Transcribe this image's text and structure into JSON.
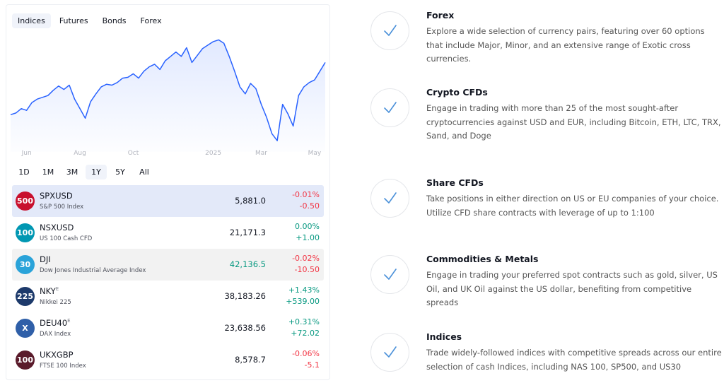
{
  "tabs": [
    "Indices",
    "Futures",
    "Bonds",
    "Forex"
  ],
  "chart_data": {
    "type": "line",
    "color": "#2962ff",
    "values": [
      5280,
      5300,
      5350,
      5330,
      5420,
      5460,
      5480,
      5500,
      5560,
      5610,
      5570,
      5620,
      5460,
      5350,
      5240,
      5430,
      5520,
      5600,
      5630,
      5620,
      5650,
      5700,
      5710,
      5750,
      5700,
      5780,
      5830,
      5860,
      5800,
      5900,
      5950,
      6000,
      5950,
      6050,
      5880,
      5960,
      6040,
      6080,
      6120,
      6140,
      6100,
      5950,
      5780,
      5600,
      5520,
      5640,
      5580,
      5400,
      5250,
      5062,
      4982,
      5400,
      5290,
      5150,
      5500,
      5600,
      5650,
      5680,
      5780,
      5880
    ],
    "xlim": [
      0,
      59
    ],
    "ylim": [
      4950,
      6200
    ],
    "xticks": [
      {
        "value": 3,
        "label": "Jun"
      },
      {
        "value": 13,
        "label": "Aug"
      },
      {
        "value": 23,
        "label": "Oct"
      },
      {
        "value": 38,
        "label": "2025"
      },
      {
        "value": 47,
        "label": "Mar"
      },
      {
        "value": 57,
        "label": "May"
      }
    ]
  },
  "periods": [
    "1D",
    "1M",
    "3M",
    "1Y",
    "5Y",
    "All"
  ],
  "table": {
    "rows": [
      {
        "badge": "500",
        "badge_color": "#c8102e",
        "symbol": "SPXUSD",
        "name": "S&P 500 Index",
        "last": "5,881.0",
        "change_pct": "-0.01%",
        "change": "-0.50",
        "change_color": "#f23645",
        "last_color": "#131722"
      },
      {
        "badge": "100",
        "badge_color": "#0097b2",
        "symbol": "NSXUSD",
        "name": "US 100 Cash CFD",
        "last": "21,171.3",
        "change_pct": "0.00%",
        "change": "+1.00",
        "change_color": "#089981",
        "last_color": "#131722"
      },
      {
        "badge": "30",
        "badge_color": "#2aa3d9",
        "symbol": "DJI",
        "name": "Dow Jones Industrial Average Index",
        "last": "42,136.5",
        "change_pct": "-0.02%",
        "change": "-10.50",
        "change_color": "#f23645",
        "last_color": "#089981"
      },
      {
        "badge": "225",
        "badge_color": "#1d3a6b",
        "symbol": "NKY",
        "sup": "E",
        "name": "Nikkei 225",
        "last": "38,183.26",
        "change_pct": "+1.43%",
        "change": "+539.00",
        "change_color": "#089981",
        "last_color": "#131722"
      },
      {
        "badge": "X",
        "badge_color": "#2f5fa8",
        "symbol": "DEU40",
        "sup": "E",
        "name": "DAX Index",
        "last": "23,638.56",
        "change_pct": "+0.31%",
        "change": "+72.02",
        "change_color": "#089981",
        "last_color": "#131722"
      },
      {
        "badge": "100",
        "badge_color": "#5a1b2b",
        "symbol": "UKXGBP",
        "name": "FTSE 100 Index",
        "last": "8,578.7",
        "change_pct": "-0.06%",
        "change": "-5.1",
        "change_color": "#f23645",
        "last_color": "#131722"
      }
    ]
  },
  "features": [
    {
      "title": "Forex",
      "text": "Explore a wide selection of currency pairs, featuring over 60 options that include Major, Minor, and an extensive range of Exotic cross currencies."
    },
    {
      "title": "Crypto CFDs",
      "text": "Engage in trading with more than 25 of the most sought-after cryptocurrencies against USD and EUR, including Bitcoin, ETH, LTC, TRX, Sand, and Doge"
    },
    {
      "title": "Share CFDs",
      "text": "Take positions in either direction on US or EU companies of your choice. Utilize CFD share contracts with leverage of up to 1:100"
    },
    {
      "title": "Commodities & Metals",
      "text": "Engage in trading your preferred spot contracts such as gold, silver, US Oil, and UK Oil against the US dollar, benefiting from competitive spreads"
    },
    {
      "title": "Indices",
      "text": "Trade widely-followed indices with competitive spreads across our entire selection of cash Indices, including NAS 100, SP500, and US30"
    }
  ]
}
